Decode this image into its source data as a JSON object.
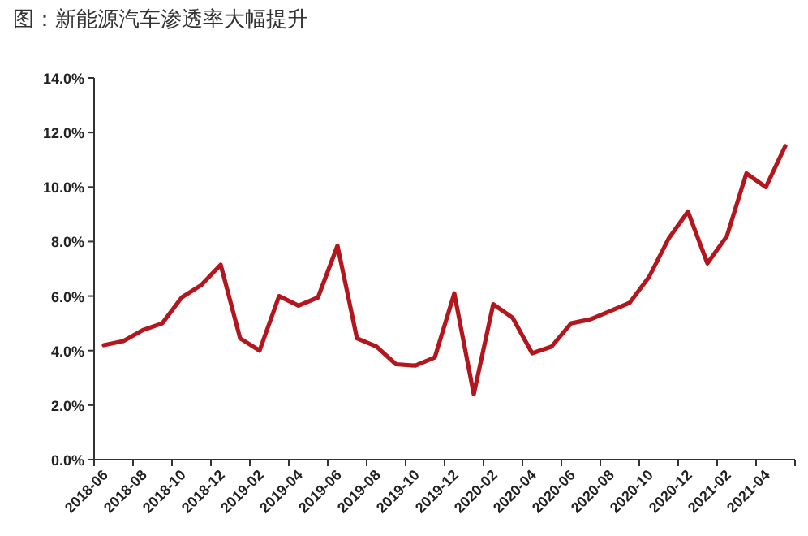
{
  "chart_data": {
    "type": "line",
    "title": "图：新能源汽车渗透率大幅提升",
    "categories": [
      "2018-06",
      null,
      "2018-08",
      null,
      "2018-10",
      null,
      "2018-12",
      null,
      "2019-02",
      null,
      "2019-04",
      null,
      "2019-06",
      null,
      "2019-08",
      null,
      "2019-10",
      null,
      "2019-12",
      null,
      "2020-02",
      null,
      "2020-04",
      null,
      "2020-06",
      null,
      "2020-08",
      null,
      "2020-10",
      null,
      "2020-12",
      null,
      "2021-02",
      null,
      "2021-04",
      null
    ],
    "series": [
      {
        "color": "#b3161c",
        "values": [
          4.2,
          4.35,
          4.75,
          5.0,
          5.95,
          6.4,
          7.15,
          4.45,
          4.0,
          6.0,
          5.65,
          5.95,
          7.85,
          4.45,
          4.15,
          3.5,
          3.45,
          3.75,
          6.1,
          2.4,
          5.7,
          5.2,
          3.9,
          4.15,
          5.0,
          5.15,
          5.45,
          5.75,
          6.7,
          8.1,
          9.1,
          7.2,
          8.2,
          10.5,
          10.0,
          11.5
        ]
      }
    ],
    "ylim": [
      0,
      14
    ],
    "yticks": [
      {
        "value": 0,
        "label": "0.0%"
      },
      {
        "value": 2,
        "label": "2.0%"
      },
      {
        "value": 4,
        "label": "4.0%"
      },
      {
        "value": 6,
        "label": "6.0%"
      },
      {
        "value": 8,
        "label": "8.0%"
      },
      {
        "value": 10,
        "label": "10.0%"
      },
      {
        "value": 12,
        "label": "12.0%"
      },
      {
        "value": 14,
        "label": "14.0%"
      }
    ],
    "grid": false,
    "marker": "none",
    "line_style": "solid"
  }
}
